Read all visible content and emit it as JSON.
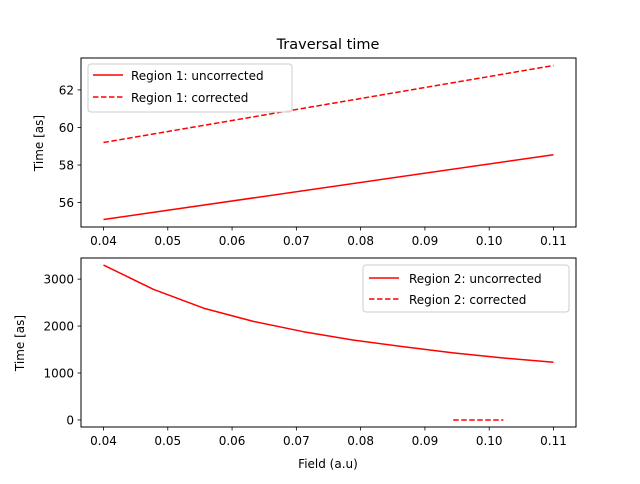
{
  "chart_data": [
    {
      "type": "line",
      "title": "Traversal time",
      "xlabel": "",
      "ylabel": "Time [as]",
      "xlim": [
        0.0365,
        0.1135
      ],
      "ylim": [
        54.7,
        63.7
      ],
      "xticks": [
        0.04,
        0.05,
        0.06,
        0.07,
        0.08,
        0.09,
        0.1,
        0.11
      ],
      "xtick_labels": [
        "0.04",
        "0.05",
        "0.06",
        "0.07",
        "0.08",
        "0.09",
        "0.10",
        "0.11"
      ],
      "yticks": [
        56,
        58,
        60,
        62
      ],
      "ytick_labels": [
        "56",
        "58",
        "60",
        "62"
      ],
      "legend_position": "top-left",
      "grid": false,
      "series": [
        {
          "name": "Region 1: uncorrected",
          "style": "solid",
          "color": "#ff0000",
          "x": [
            0.04,
            0.11
          ],
          "y": [
            55.1,
            58.55
          ]
        },
        {
          "name": "Region 1: corrected",
          "style": "dashed",
          "color": "#ff0000",
          "x": [
            0.04,
            0.11
          ],
          "y": [
            59.2,
            63.3
          ]
        }
      ]
    },
    {
      "type": "line",
      "title": "",
      "xlabel": "Field (a.u)",
      "ylabel": "Time [as]",
      "xlim": [
        0.0365,
        0.1135
      ],
      "ylim": [
        -150,
        3450
      ],
      "xticks": [
        0.04,
        0.05,
        0.06,
        0.07,
        0.08,
        0.09,
        0.1,
        0.11
      ],
      "xtick_labels": [
        "0.04",
        "0.05",
        "0.06",
        "0.07",
        "0.08",
        "0.09",
        "0.10",
        "0.11"
      ],
      "yticks": [
        0,
        1000,
        2000,
        3000
      ],
      "ytick_labels": [
        "0",
        "1000",
        "2000",
        "3000"
      ],
      "legend_position": "top-right",
      "grid": false,
      "series": [
        {
          "name": "Region 2: uncorrected",
          "style": "solid",
          "color": "#ff0000",
          "x": [
            0.04,
            0.0478,
            0.0556,
            0.0633,
            0.0711,
            0.0789,
            0.0867,
            0.0944,
            0.1022,
            0.11
          ],
          "y": [
            3300,
            2780,
            2380,
            2100,
            1880,
            1700,
            1560,
            1430,
            1320,
            1230
          ]
        },
        {
          "name": "Region 2: corrected",
          "style": "dashed",
          "color": "#ff0000",
          "x": [
            0.0944,
            0.1022
          ],
          "y": [
            0,
            0
          ]
        }
      ]
    }
  ]
}
